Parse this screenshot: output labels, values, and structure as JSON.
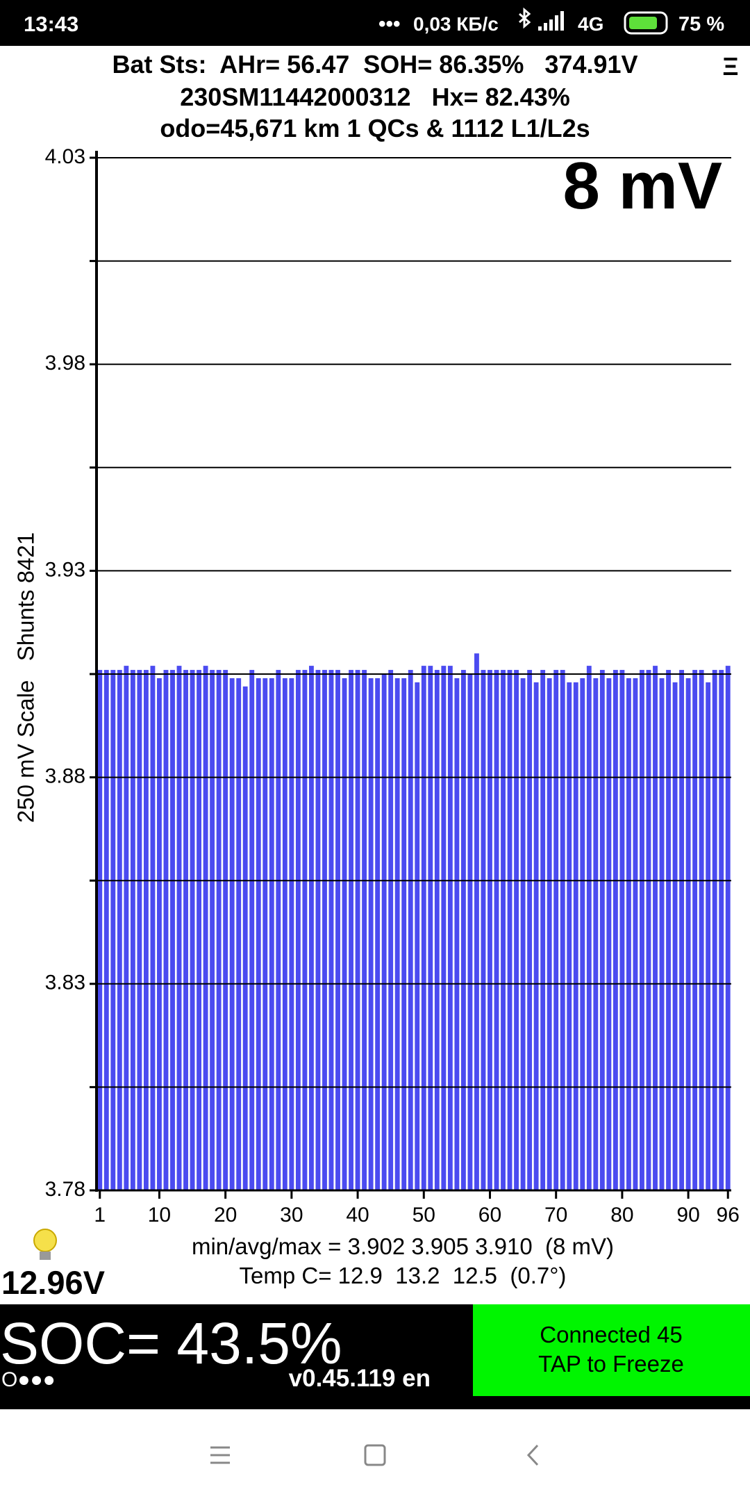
{
  "status_bar": {
    "time": "13:43",
    "net_speed": "0,03 КБ/с",
    "network": "4G",
    "battery": "75 %"
  },
  "header": {
    "line1": "Bat Sts:  AHr= 56.47  SOH= 86.35%   374.91V",
    "line2": "230SM11442000312   Hx= 82.43%",
    "line3": "odo=45,671 km 1 QCs & 1112 L1/L2s",
    "menu": "Ξ"
  },
  "chart_data": {
    "type": "bar",
    "annotation": "8 mV",
    "y_label": "250 mV Scale   Shunts 8421",
    "color": "#4b4bf0",
    "grid": true,
    "x": [
      1,
      2,
      3,
      4,
      5,
      6,
      7,
      8,
      9,
      10,
      11,
      12,
      13,
      14,
      15,
      16,
      17,
      18,
      19,
      20,
      21,
      22,
      23,
      24,
      25,
      26,
      27,
      28,
      29,
      30,
      31,
      32,
      33,
      34,
      35,
      36,
      37,
      38,
      39,
      40,
      41,
      42,
      43,
      44,
      45,
      46,
      47,
      48,
      49,
      50,
      51,
      52,
      53,
      54,
      55,
      56,
      57,
      58,
      59,
      60,
      61,
      62,
      63,
      64,
      65,
      66,
      67,
      68,
      69,
      70,
      71,
      72,
      73,
      74,
      75,
      76,
      77,
      78,
      79,
      80,
      81,
      82,
      83,
      84,
      85,
      86,
      87,
      88,
      89,
      90,
      91,
      92,
      93,
      94,
      95,
      96
    ],
    "values": [
      3.906,
      3.906,
      3.906,
      3.906,
      3.907,
      3.906,
      3.906,
      3.906,
      3.907,
      3.904,
      3.906,
      3.906,
      3.907,
      3.906,
      3.906,
      3.906,
      3.907,
      3.906,
      3.906,
      3.906,
      3.904,
      3.904,
      3.902,
      3.906,
      3.904,
      3.904,
      3.904,
      3.906,
      3.904,
      3.904,
      3.906,
      3.906,
      3.907,
      3.906,
      3.906,
      3.906,
      3.906,
      3.904,
      3.906,
      3.906,
      3.906,
      3.904,
      3.904,
      3.905,
      3.906,
      3.904,
      3.904,
      3.906,
      3.903,
      3.907,
      3.907,
      3.906,
      3.907,
      3.907,
      3.904,
      3.906,
      3.905,
      3.91,
      3.906,
      3.906,
      3.906,
      3.906,
      3.906,
      3.906,
      3.904,
      3.906,
      3.903,
      3.906,
      3.904,
      3.906,
      3.906,
      3.903,
      3.903,
      3.904,
      3.907,
      3.904,
      3.906,
      3.904,
      3.906,
      3.906,
      3.904,
      3.904,
      3.906,
      3.906,
      3.907,
      3.904,
      3.906,
      3.903,
      3.906,
      3.904,
      3.906,
      3.906,
      3.903,
      3.906,
      3.906,
      3.907
    ],
    "xlim": [
      0.5,
      96.5
    ],
    "xticks": [
      1,
      10,
      20,
      30,
      40,
      50,
      60,
      70,
      80,
      90,
      96
    ],
    "ylim": [
      3.78,
      4.03
    ],
    "yticks": [
      3.78,
      3.83,
      3.88,
      3.93,
      3.98,
      4.03
    ],
    "minor_yticks": [
      3.805,
      3.855,
      3.905,
      3.955,
      4.005
    ]
  },
  "footer": {
    "pack_volts": "12.96V",
    "minavgmax": "min/avg/max = 3.902 3.905 3.910  (8 mV)",
    "temp": "Temp C= 12.9  13.2  12.5  (0.7°)",
    "soc": "SOC= 43.5%",
    "dots": "O●●●",
    "version": "v0.45.119 en",
    "status1": "Connected 45",
    "status2": "TAP to Freeze"
  }
}
